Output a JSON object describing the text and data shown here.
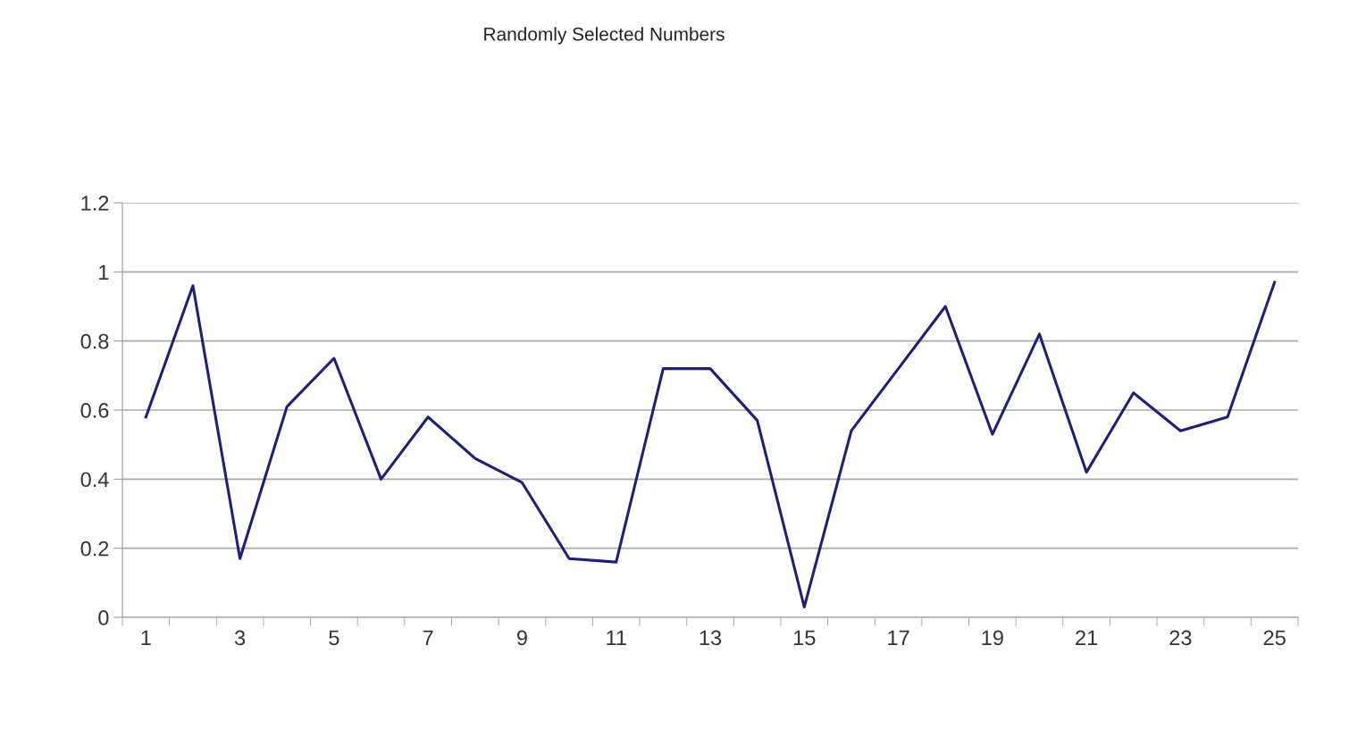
{
  "chart_data": {
    "type": "line",
    "title": "Randomly Selected Numbers",
    "categories": [
      "1",
      null,
      "3",
      null,
      "5",
      null,
      "7",
      null,
      "9",
      null,
      "11",
      null,
      "13",
      null,
      "15",
      null,
      "17",
      null,
      "19",
      null,
      "21",
      null,
      "23",
      null,
      "25"
    ],
    "series": [
      {
        "color": "#1f1f7a",
        "values": [
          0.58,
          0.96,
          0.17,
          0.61,
          0.75,
          0.4,
          0.58,
          0.46,
          0.39,
          0.17,
          0.16,
          0.72,
          0.72,
          0.57,
          0.03,
          0.54,
          0.72,
          0.9,
          0.53,
          0.82,
          0.42,
          0.65,
          0.54,
          0.58,
          0.97
        ]
      }
    ],
    "ylim": [
      0,
      1.2
    ],
    "yticks": [
      0,
      0.2,
      0.4,
      0.6,
      0.8,
      1,
      1.2
    ],
    "grid": "y",
    "marker": "none",
    "line_style": "solid"
  }
}
